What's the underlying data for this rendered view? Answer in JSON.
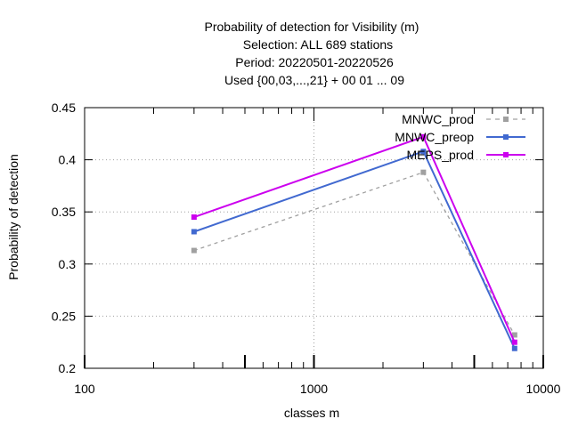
{
  "chart_data": {
    "type": "line",
    "title_lines": [
      "Probability of detection  for Visibility (m)",
      "Selection: ALL    689 stations",
      "Period: 20220501-20220526",
      "Used {00,03,...,21} + 00 01 ... 09"
    ],
    "xlabel": "classes m",
    "ylabel": "Probability of detection",
    "xscale": "log",
    "xlim": [
      100,
      10000
    ],
    "ylim": [
      0.2,
      0.45
    ],
    "x_ticks": [
      100,
      1000,
      10000
    ],
    "x_tick_labels": [
      "100",
      "1000",
      "10000"
    ],
    "y_ticks": [
      0.2,
      0.25,
      0.3,
      0.35,
      0.4,
      0.45
    ],
    "y_tick_labels": [
      "0.2",
      "0.25",
      "0.3",
      "0.35",
      "0.4",
      "0.45"
    ],
    "grid": true,
    "legend_position": "top-right",
    "x": [
      300,
      3000,
      7500
    ],
    "series": [
      {
        "name": "MNWC_prod",
        "values": [
          0.313,
          0.388,
          0.232
        ],
        "color": "#a0a0a0",
        "dashed": true
      },
      {
        "name": "MNWC_preop",
        "values": [
          0.331,
          0.408,
          0.219
        ],
        "color": "#4169d0",
        "dashed": false
      },
      {
        "name": "MEPS_prod",
        "values": [
          0.345,
          0.422,
          0.225
        ],
        "color": "#cc00ee",
        "dashed": false
      }
    ]
  }
}
